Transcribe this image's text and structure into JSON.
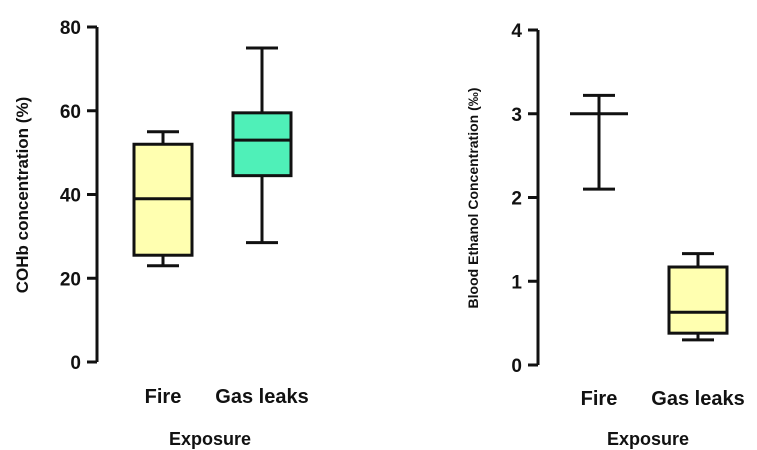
{
  "chart_data": [
    {
      "type": "box",
      "xlabel": "Exposure",
      "ylabel": "COHb concentration (%)",
      "ylim": [
        0,
        80
      ],
      "yticks": [
        "0",
        "20",
        "40",
        "60",
        "80"
      ],
      "categories": [
        "Fire",
        "Gas leaks"
      ],
      "boxes": [
        {
          "category": "Fire",
          "min": 23,
          "q1": 25.5,
          "median": 39,
          "q3": 52,
          "max": 55,
          "color": "#ffffb0"
        },
        {
          "category": "Gas leaks",
          "min": 28.5,
          "q1": 44.5,
          "median": 53,
          "q3": 59.5,
          "max": 75,
          "color": "#4ff0b8"
        }
      ]
    },
    {
      "type": "box",
      "xlabel": "Exposure",
      "ylabel": "Blood Ethanol Concentration (‰)",
      "ylim": [
        0,
        4
      ],
      "yticks": [
        "0",
        "1",
        "2",
        "3",
        "4"
      ],
      "categories": [
        "Fire",
        "Gas leaks"
      ],
      "boxes": [
        {
          "category": "Fire",
          "min": 2.1,
          "q1": 3.0,
          "median": 3.0,
          "q3": 3.0,
          "max": 3.22,
          "color": "#ffffb0"
        },
        {
          "category": "Gas leaks",
          "min": 0.3,
          "q1": 0.38,
          "median": 0.63,
          "q3": 1.17,
          "max": 1.33,
          "color": "#ffffb0"
        }
      ]
    }
  ]
}
